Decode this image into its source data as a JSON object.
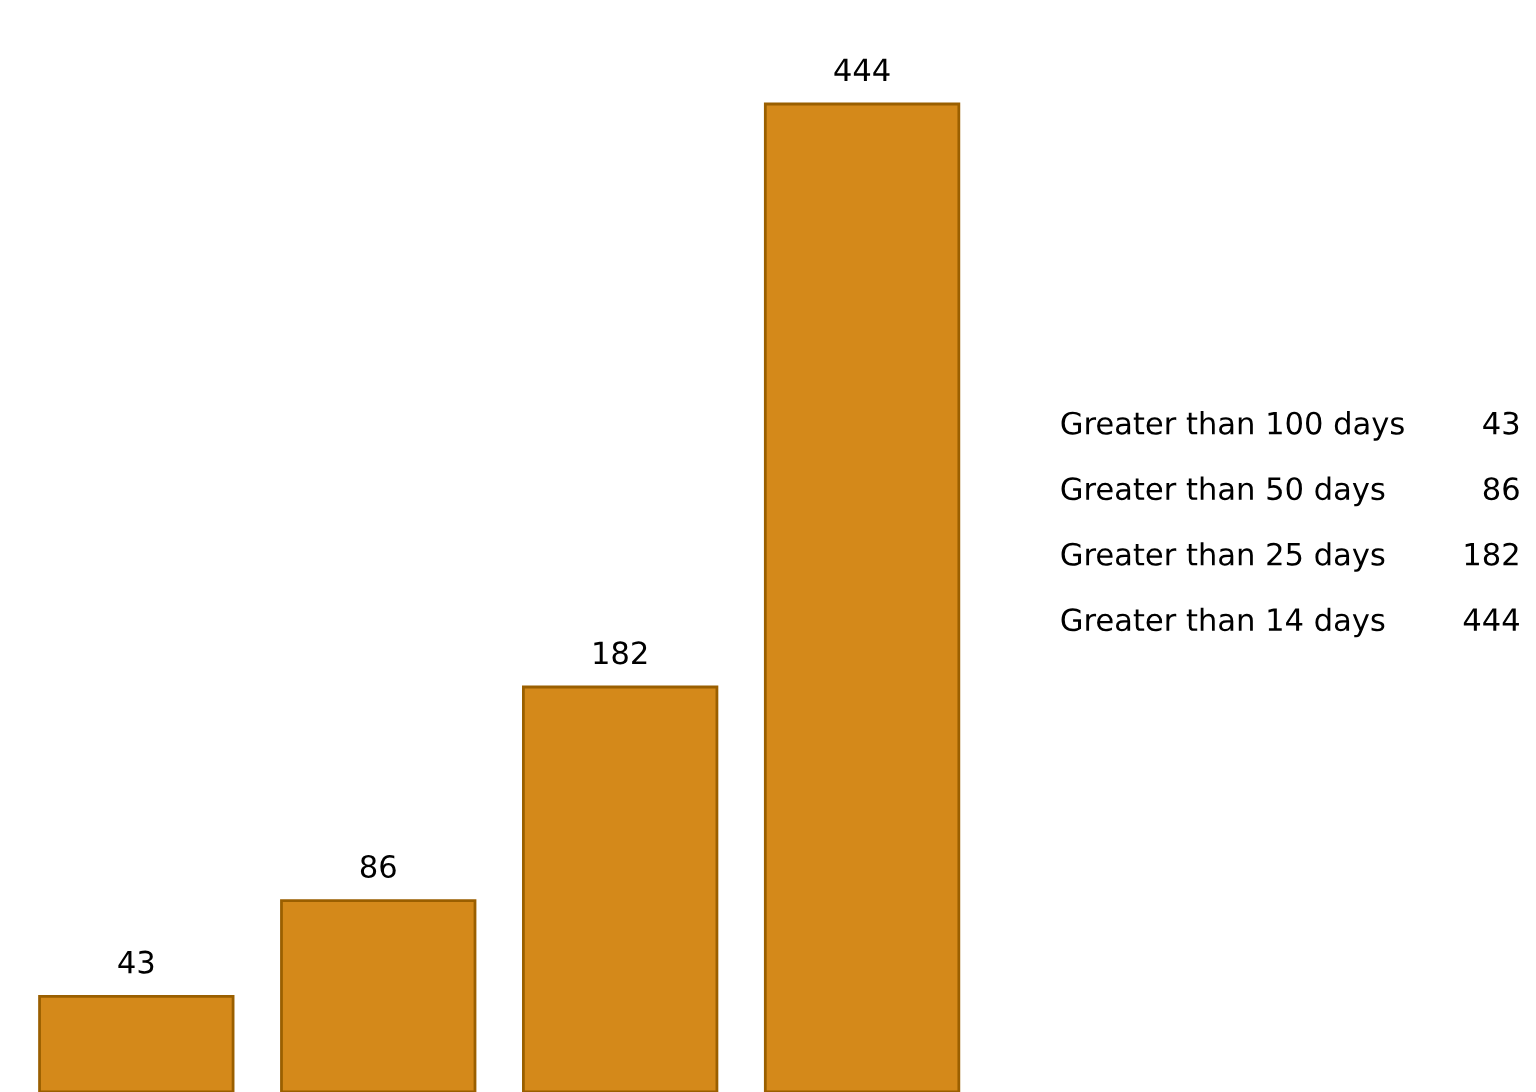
{
  "chart_data": [
    {
      "type": "bar",
      "categories": [
        null,
        null,
        null,
        null
      ],
      "values": [
        43,
        86,
        182,
        444
      ],
      "color": "#d4891a",
      "data_labels": true,
      "tick_labels": false
    },
    {
      "type": "other",
      "categories": [
        "Greater than 100 days",
        "Greater than 50 days",
        "Greater than 25 days",
        "Greater than 14 days"
      ],
      "values": [
        43,
        86,
        182,
        444
      ],
      "data_labels": true
    }
  ]
}
